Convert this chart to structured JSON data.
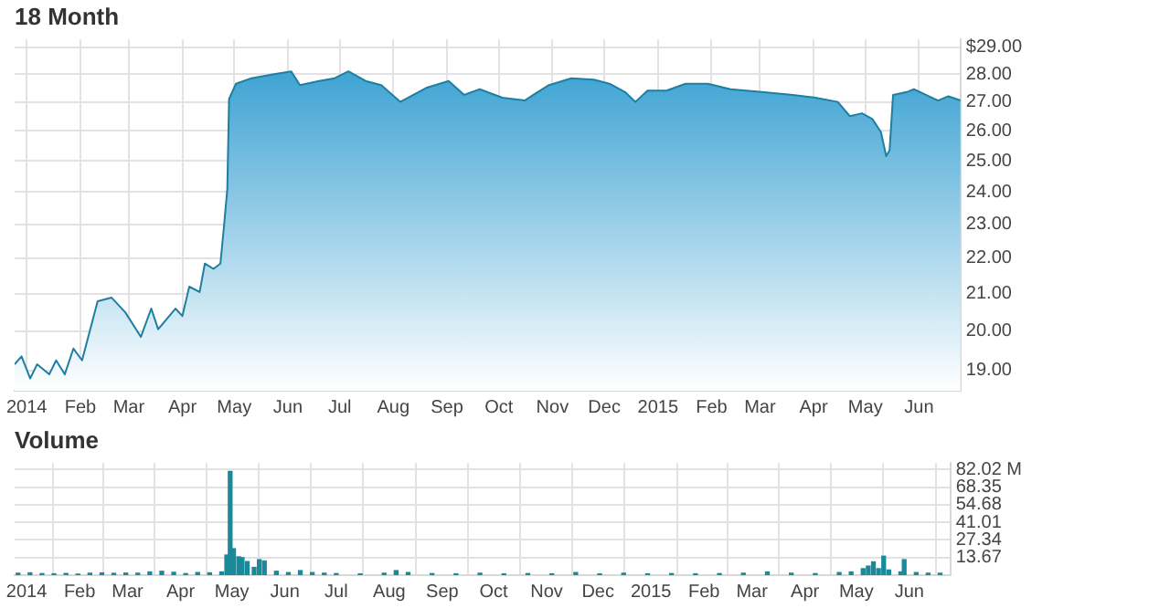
{
  "chart_data": [
    {
      "type": "area",
      "title": "18 Month",
      "log": "y",
      "grid": true,
      "xlim": [
        "2013-12-25",
        "2015-06-25"
      ],
      "xticks": [
        {
          "value": "2014-01-01",
          "label": "2014"
        },
        {
          "value": "2014-02-01",
          "label": "Feb"
        },
        {
          "value": "2014-03-01",
          "label": "Mar"
        },
        {
          "value": "2014-04-01",
          "label": "Apr"
        },
        {
          "value": "2014-05-01",
          "label": "May"
        },
        {
          "value": "2014-06-01",
          "label": "Jun"
        },
        {
          "value": "2014-07-01",
          "label": "Jul"
        },
        {
          "value": "2014-08-01",
          "label": "Aug"
        },
        {
          "value": "2014-09-01",
          "label": "Sep"
        },
        {
          "value": "2014-10-01",
          "label": "Oct"
        },
        {
          "value": "2014-11-01",
          "label": "Nov"
        },
        {
          "value": "2014-12-01",
          "label": "Dec"
        },
        {
          "value": "2015-01-01",
          "label": "2015"
        },
        {
          "value": "2015-02-01",
          "label": "Feb"
        },
        {
          "value": "2015-03-01",
          "label": "Mar"
        },
        {
          "value": "2015-04-01",
          "label": "Apr"
        },
        {
          "value": "2015-05-01",
          "label": "May"
        },
        {
          "value": "2015-06-01",
          "label": "Jun"
        }
      ],
      "ylim": [
        18.5,
        29.3
      ],
      "yticks": [
        {
          "value": 19,
          "label": "19.00"
        },
        {
          "value": 20,
          "label": "20.00"
        },
        {
          "value": 21,
          "label": "21.00"
        },
        {
          "value": 22,
          "label": "22.00"
        },
        {
          "value": 23,
          "label": "23.00"
        },
        {
          "value": 24,
          "label": "24.00"
        },
        {
          "value": 25,
          "label": "25.00"
        },
        {
          "value": 26,
          "label": "26.00"
        },
        {
          "value": 27,
          "label": "27.00"
        },
        {
          "value": 28,
          "label": "28.00"
        },
        {
          "value": 29,
          "label": "$29.00"
        }
      ],
      "series": [
        {
          "color": "#2b9acf",
          "x": [
            "2013-12-25",
            "2013-12-29",
            "2014-01-03",
            "2014-01-07",
            "2014-01-14",
            "2014-01-18",
            "2014-01-23",
            "2014-01-28",
            "2014-02-02",
            "2014-02-11",
            "2014-02-19",
            "2014-02-27",
            "2014-03-08",
            "2014-03-14",
            "2014-03-18",
            "2014-03-28",
            "2014-04-01",
            "2014-04-05",
            "2014-04-11",
            "2014-04-14",
            "2014-04-19",
            "2014-04-23",
            "2014-04-25",
            "2014-04-27",
            "2014-04-28",
            "2014-05-02",
            "2014-05-11",
            "2014-05-24",
            "2014-06-03",
            "2014-06-08",
            "2014-06-19",
            "2014-06-28",
            "2014-07-06",
            "2014-07-16",
            "2014-07-25",
            "2014-08-05",
            "2014-08-20",
            "2014-09-02",
            "2014-09-11",
            "2014-09-20",
            "2014-10-03",
            "2014-10-16",
            "2014-10-21",
            "2014-10-30",
            "2014-11-12",
            "2014-11-25",
            "2014-12-04",
            "2014-12-13",
            "2014-12-19",
            "2014-12-26",
            "2015-01-06",
            "2015-01-17",
            "2015-01-30",
            "2015-02-12",
            "2015-03-02",
            "2015-03-20",
            "2015-04-02",
            "2015-04-15",
            "2015-04-22",
            "2015-04-29",
            "2015-05-05",
            "2015-05-10",
            "2015-05-13",
            "2015-05-15",
            "2015-05-17",
            "2015-05-25",
            "2015-05-29",
            "2015-06-05",
            "2015-06-12",
            "2015-06-18",
            "2015-06-25"
          ],
          "values": [
            19.15,
            19.35,
            18.8,
            19.15,
            18.9,
            19.25,
            18.9,
            19.55,
            19.25,
            20.8,
            20.9,
            20.5,
            19.85,
            20.6,
            20.05,
            20.6,
            20.4,
            21.2,
            21.05,
            21.85,
            21.7,
            21.85,
            22.9,
            24.1,
            27.1,
            27.65,
            27.85,
            28.0,
            28.1,
            27.6,
            27.75,
            27.85,
            28.1,
            27.75,
            27.6,
            27.0,
            27.5,
            27.75,
            27.25,
            27.45,
            27.15,
            27.05,
            27.25,
            27.6,
            27.85,
            27.8,
            27.65,
            27.35,
            27.0,
            27.4,
            27.4,
            27.65,
            27.65,
            27.45,
            27.35,
            27.25,
            27.15,
            27.0,
            26.5,
            26.6,
            26.4,
            25.95,
            25.15,
            25.35,
            27.25,
            27.35,
            27.45,
            27.25,
            27.05,
            27.2,
            27.05
          ]
        }
      ]
    },
    {
      "type": "bar",
      "title": "Volume",
      "grid": true,
      "xlim": [
        "2013-12-25",
        "2015-06-25"
      ],
      "xticks": [
        {
          "value": "2014-01-01",
          "label": "2014"
        },
        {
          "value": "2014-02-01",
          "label": "Feb"
        },
        {
          "value": "2014-03-01",
          "label": "Mar"
        },
        {
          "value": "2014-04-01",
          "label": "Apr"
        },
        {
          "value": "2014-05-01",
          "label": "May"
        },
        {
          "value": "2014-06-01",
          "label": "Jun"
        },
        {
          "value": "2014-07-01",
          "label": "Jul"
        },
        {
          "value": "2014-08-01",
          "label": "Aug"
        },
        {
          "value": "2014-09-01",
          "label": "Sep"
        },
        {
          "value": "2014-10-01",
          "label": "Oct"
        },
        {
          "value": "2014-11-01",
          "label": "Nov"
        },
        {
          "value": "2014-12-01",
          "label": "Dec"
        },
        {
          "value": "2015-01-01",
          "label": "2015"
        },
        {
          "value": "2015-02-01",
          "label": "Feb"
        },
        {
          "value": "2015-03-01",
          "label": "Mar"
        },
        {
          "value": "2015-04-01",
          "label": "Apr"
        },
        {
          "value": "2015-05-01",
          "label": "May"
        },
        {
          "value": "2015-06-01",
          "label": "Jun"
        }
      ],
      "ylim": [
        0,
        87
      ],
      "yticks": [
        13.67,
        27.34,
        41.01,
        54.68,
        68.35,
        {
          "value": 82.02,
          "label": "82.02 M"
        }
      ],
      "series": [
        {
          "color": "#1a8a9a",
          "x": [
            "2013-12-27",
            "2014-01-03",
            "2014-01-10",
            "2014-01-17",
            "2014-01-24",
            "2014-01-31",
            "2014-02-07",
            "2014-02-14",
            "2014-02-21",
            "2014-02-28",
            "2014-03-07",
            "2014-03-14",
            "2014-03-21",
            "2014-03-28",
            "2014-04-04",
            "2014-04-11",
            "2014-04-18",
            "2014-04-25",
            "2014-04-28",
            "2014-04-30",
            "2014-05-02",
            "2014-05-05",
            "2014-05-07",
            "2014-05-10",
            "2014-05-14",
            "2014-05-17",
            "2014-05-20",
            "2014-05-27",
            "2014-06-03",
            "2014-06-10",
            "2014-06-17",
            "2014-06-24",
            "2014-07-01",
            "2014-07-15",
            "2014-07-29",
            "2014-08-05",
            "2014-08-12",
            "2014-08-26",
            "2014-09-09",
            "2014-09-23",
            "2014-10-07",
            "2014-10-21",
            "2014-11-04",
            "2014-11-18",
            "2014-12-02",
            "2014-12-16",
            "2014-12-30",
            "2015-01-13",
            "2015-01-27",
            "2015-02-10",
            "2015-02-24",
            "2015-03-10",
            "2015-03-24",
            "2015-04-07",
            "2015-04-21",
            "2015-04-28",
            "2015-05-05",
            "2015-05-08",
            "2015-05-11",
            "2015-05-14",
            "2015-05-17",
            "2015-05-20",
            "2015-05-27",
            "2015-05-29",
            "2015-06-05",
            "2015-06-12",
            "2015-06-19"
          ],
          "values": [
            1.5,
            1.8,
            1.2,
            1.0,
            1.3,
            0.8,
            1.5,
            1.7,
            1.4,
            1.6,
            1.5,
            2.5,
            3.0,
            2.2,
            1.2,
            2.0,
            1.8,
            2.5,
            15.6,
            80.5,
            20.5,
            14.2,
            13.6,
            10.5,
            6,
            12,
            11,
            3,
            2,
            3.5,
            2,
            1.5,
            1.2,
            1.0,
            1.5,
            3.5,
            2,
            1.2,
            1.0,
            1.5,
            1.0,
            1.2,
            1.0,
            2.0,
            1.0,
            1.5,
            1.0,
            1.2,
            1.0,
            1.2,
            1.5,
            2.5,
            1.5,
            1.2,
            2.0,
            2.5,
            5,
            7,
            10.3,
            5,
            14.7,
            4,
            2.5,
            12,
            2,
            1.5,
            1.5
          ]
        }
      ]
    }
  ]
}
